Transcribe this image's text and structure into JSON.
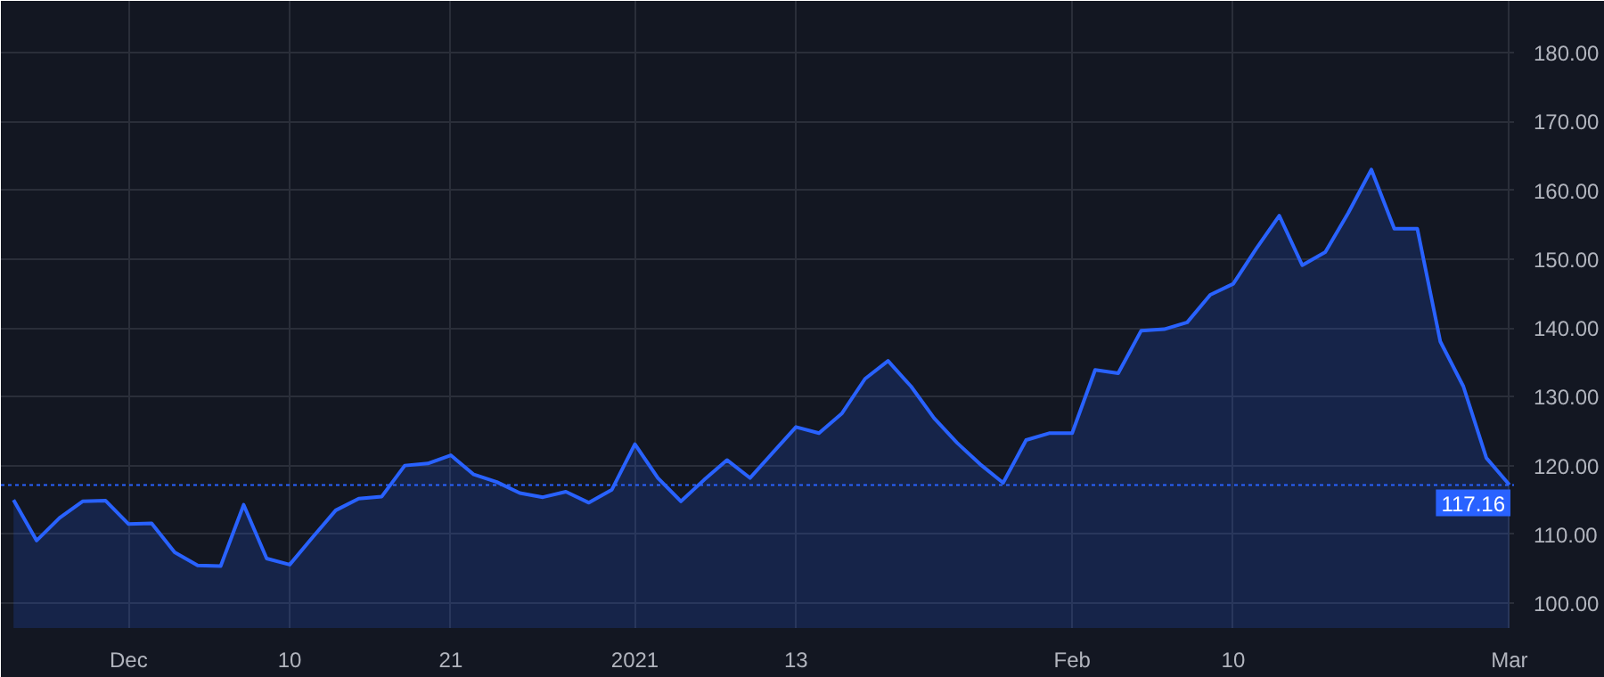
{
  "chart_data": {
    "type": "area",
    "categories": [
      null,
      null,
      null,
      null,
      null,
      "Dec",
      null,
      null,
      null,
      null,
      null,
      null,
      "10",
      null,
      null,
      null,
      null,
      null,
      null,
      "21",
      null,
      null,
      null,
      null,
      null,
      null,
      null,
      "2021",
      null,
      null,
      null,
      null,
      null,
      null,
      "13",
      null,
      null,
      null,
      null,
      null,
      null,
      null,
      null,
      null,
      null,
      null,
      "Feb",
      null,
      null,
      null,
      null,
      null,
      null,
      "10",
      null,
      null,
      null,
      null,
      null,
      null,
      null,
      null,
      null,
      null,
      null,
      "Mar"
    ],
    "series": [
      {
        "color": "#2962ff",
        "values": [
          115.0,
          109.1,
          112.4,
          114.8,
          114.9,
          111.5,
          111.6,
          107.4,
          105.5,
          105.4,
          114.3,
          106.5,
          105.6,
          109.6,
          113.5,
          115.2,
          115.5,
          120.0,
          120.3,
          121.5,
          118.7,
          117.6,
          116.0,
          115.4,
          116.2,
          114.6,
          116.5,
          123.1,
          118.2,
          114.8,
          117.9,
          120.8,
          118.2,
          121.9,
          125.6,
          124.7,
          127.6,
          132.6,
          135.2,
          131.5,
          126.9,
          123.3,
          120.2,
          117.5,
          123.7,
          124.7,
          124.7,
          133.9,
          133.4,
          139.6,
          139.8,
          140.8,
          144.8,
          146.4,
          151.5,
          156.3,
          149.1,
          151.0,
          156.7,
          163.0,
          154.4,
          154.4,
          138.0,
          131.5,
          121.1,
          117.2
        ]
      }
    ],
    "ylim": [
      96.4,
      187.5
    ],
    "yticks": [
      {
        "value": 100,
        "label": "100.00"
      },
      {
        "value": 110,
        "label": "110.00"
      },
      {
        "value": 120,
        "label": "120.00"
      },
      {
        "value": 130,
        "label": "130.00"
      },
      {
        "value": 140,
        "label": "140.00"
      },
      {
        "value": 150,
        "label": "150.00"
      },
      {
        "value": 160,
        "label": "160.00"
      },
      {
        "value": 170,
        "label": "170.00"
      },
      {
        "value": 180,
        "label": "180.00"
      }
    ],
    "ref_lines": [
      {
        "axis": "y",
        "value": 117.16,
        "label": "117.16",
        "color": "#2962ff",
        "line_style": "dotted"
      }
    ],
    "grid": true
  }
}
